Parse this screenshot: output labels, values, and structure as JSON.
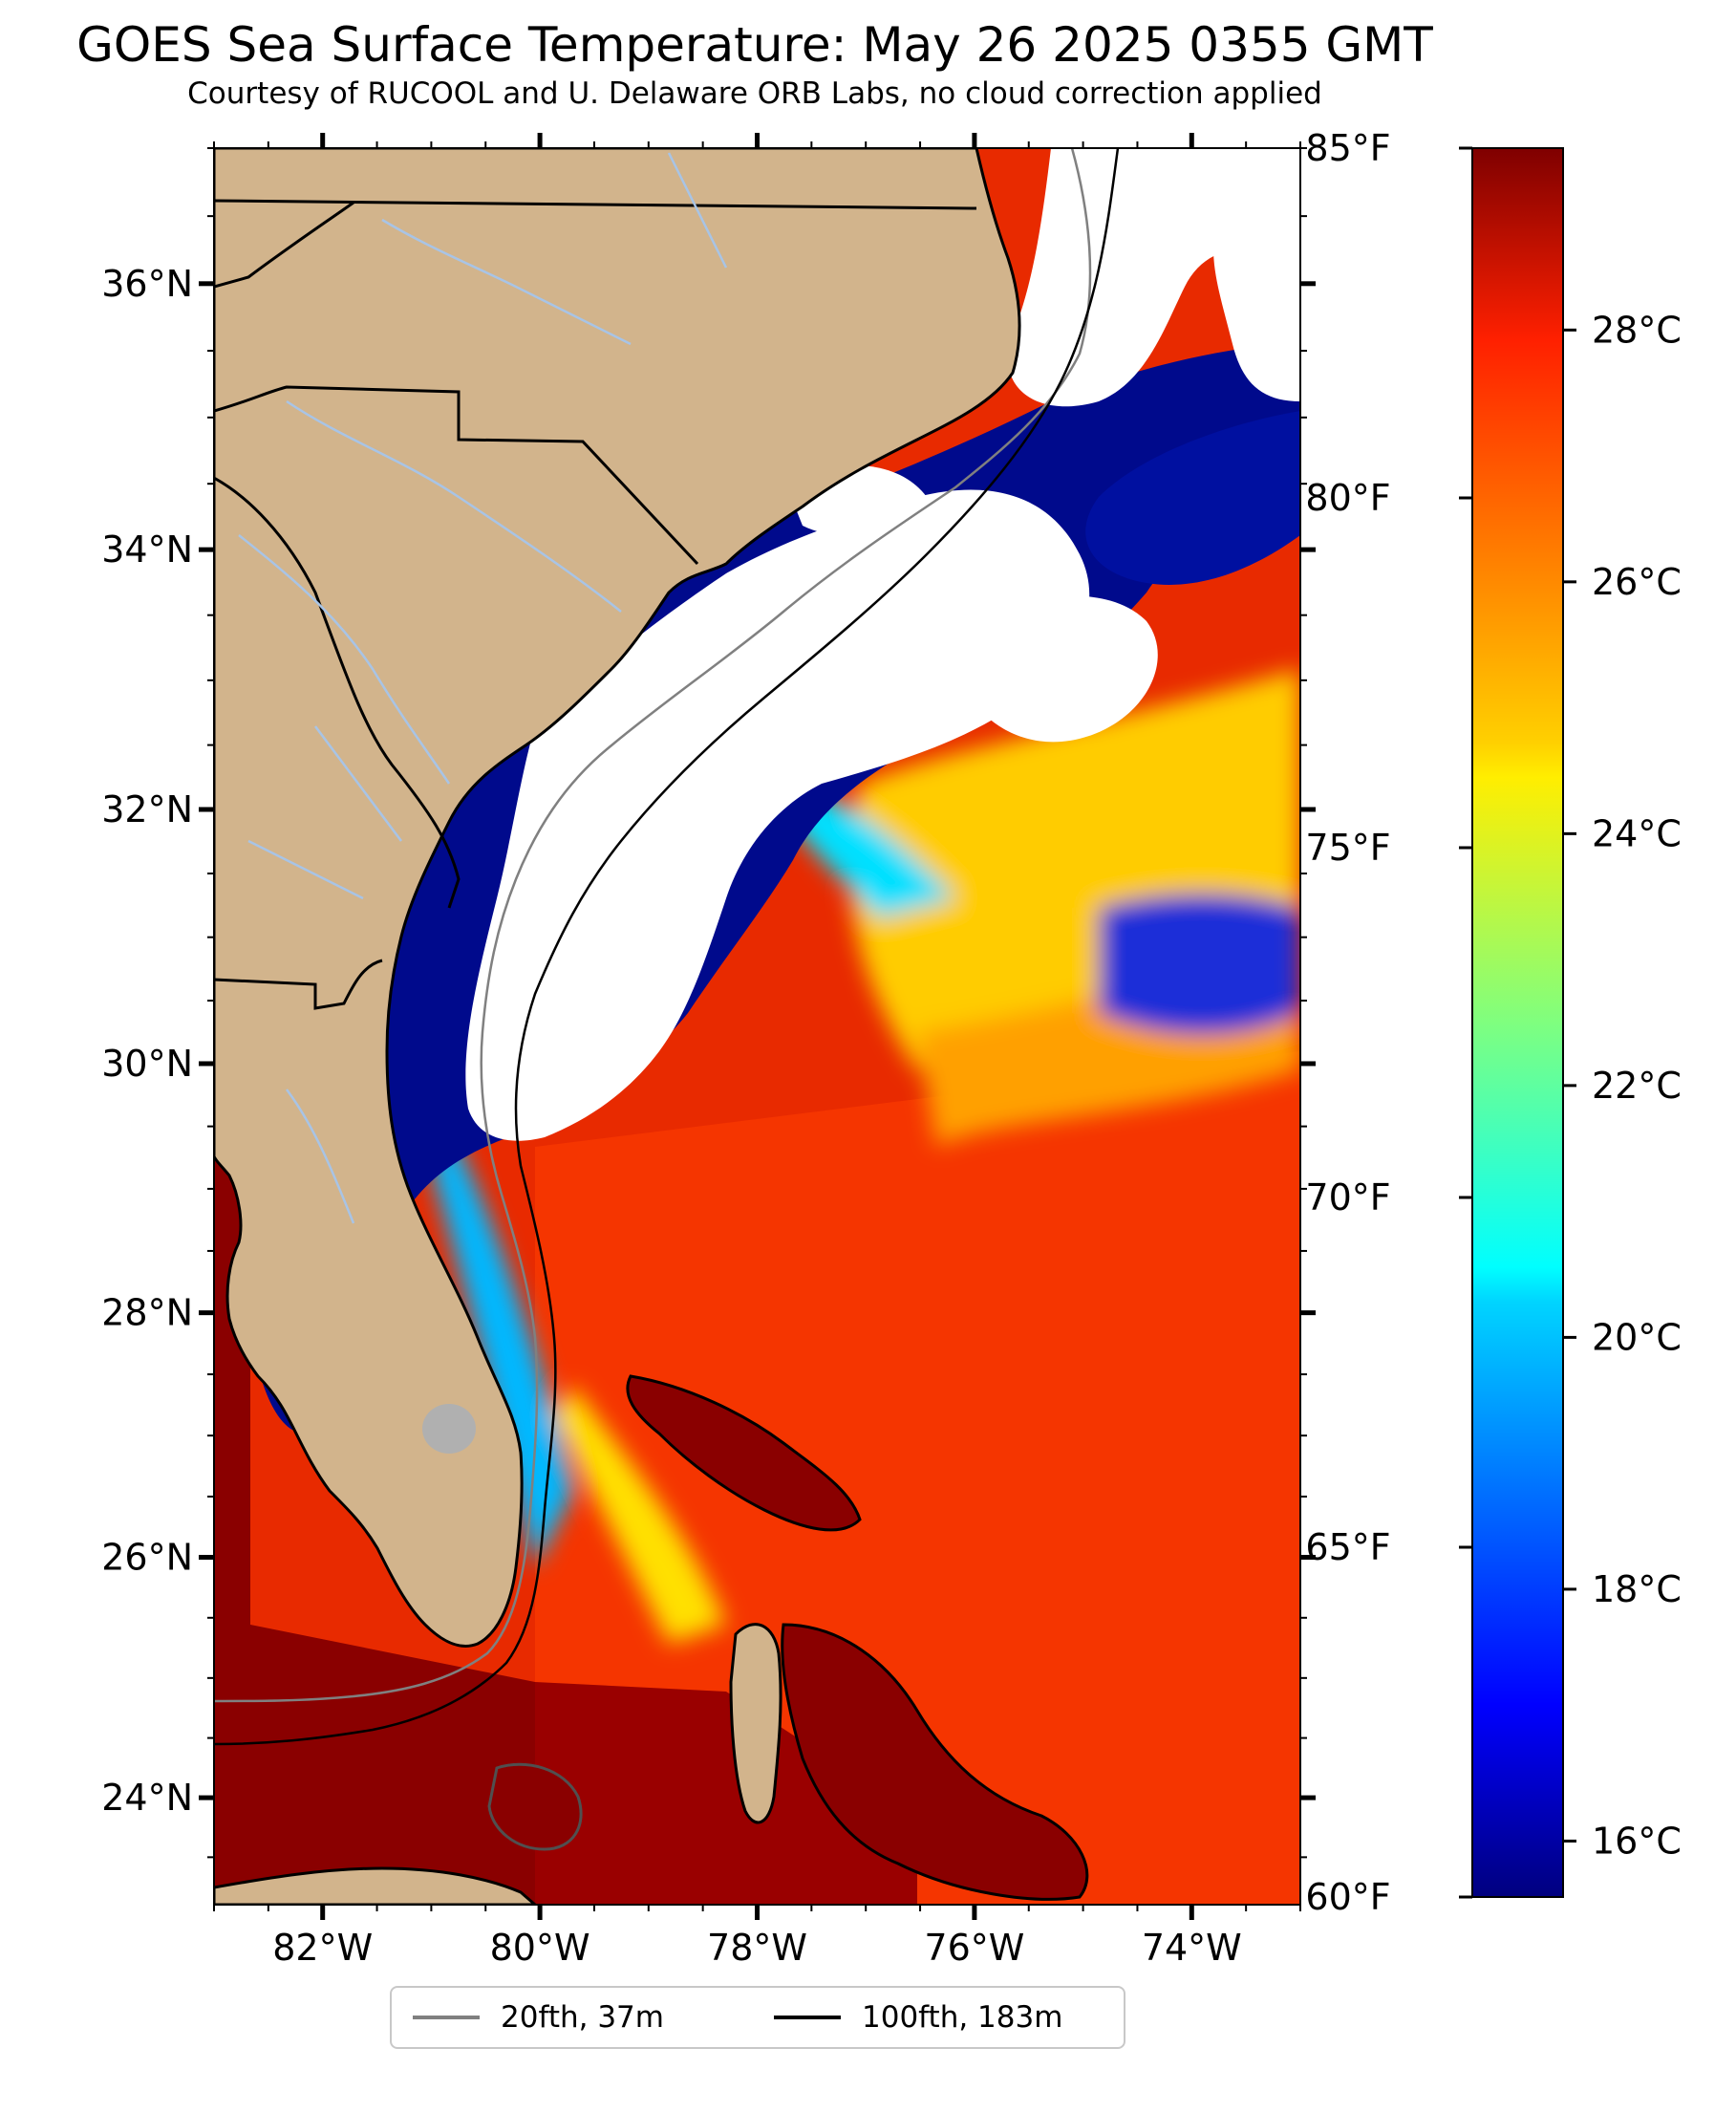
{
  "header": {
    "title": "GOES Sea Surface Temperature: May 26 2025 0355 GMT",
    "subtitle": "Courtesy of RUCOOL and U. Delaware ORB Labs, no cloud correction applied"
  },
  "map": {
    "lon_range": [
      -83,
      -73
    ],
    "lat_range": [
      23.1,
      37.0
    ],
    "lat_ticks": [
      "36°N",
      "34°N",
      "32°N",
      "30°N",
      "28°N",
      "26°N",
      "24°N"
    ],
    "lon_ticks": [
      "82°W",
      "80°W",
      "78°W",
      "76°W",
      "74°W"
    ],
    "colors": {
      "land": "#d2b48c",
      "cloud": "#ffffff",
      "rivers": "#a8c4e6"
    }
  },
  "colorbar": {
    "colormap": "jet",
    "range_f": [
      60,
      85
    ],
    "fahrenheit_ticks": [
      "85°F",
      "80°F",
      "75°F",
      "70°F",
      "65°F",
      "60°F"
    ],
    "celsius_ticks": [
      "28°C",
      "26°C",
      "24°C",
      "22°C",
      "20°C",
      "18°C",
      "16°C"
    ]
  },
  "legend": {
    "items": [
      {
        "label": "20fth, 37m",
        "color": "#808080"
      },
      {
        "label": "100fth, 183m",
        "color": "#000000"
      }
    ]
  }
}
